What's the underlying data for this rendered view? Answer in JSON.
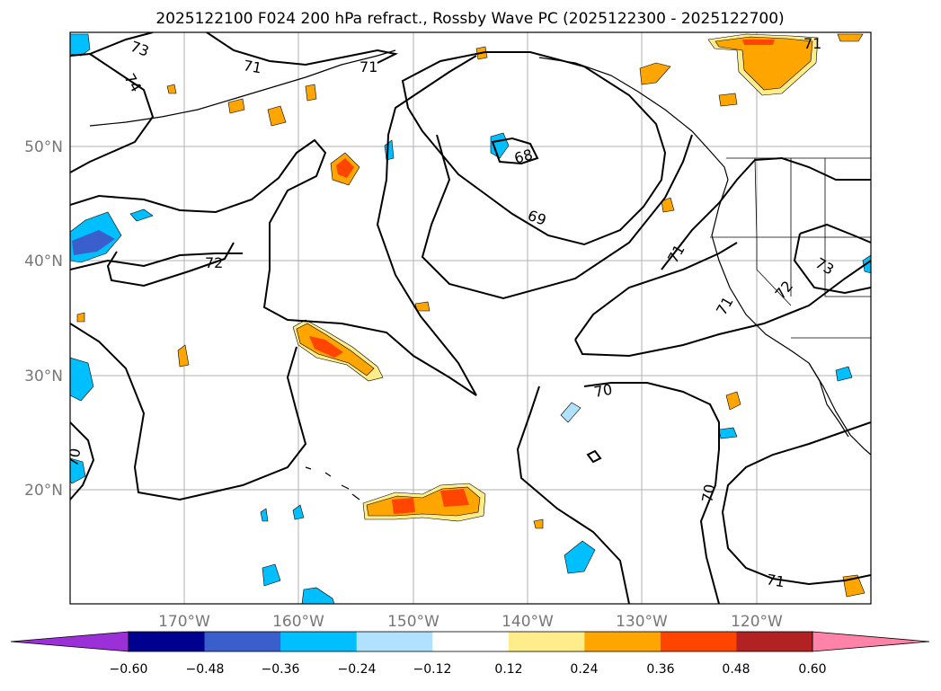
{
  "title": "2025122100 F024 200 hPa refract., Rossby Wave PC (2025122300 - 2025122700)",
  "map": {
    "lat_labels": [
      "50°N",
      "40°N",
      "30°N",
      "20°N"
    ],
    "lon_labels": [
      "170°W",
      "160°W",
      "150°W",
      "140°W",
      "130°W",
      "120°W"
    ],
    "contour_labels": [
      "73",
      "74",
      "71",
      "71",
      "71",
      "68",
      "69",
      "72",
      "71",
      "73",
      "72",
      "71",
      "70",
      "70",
      "70",
      "71"
    ]
  },
  "colorbar": {
    "ticks": [
      "−0.60",
      "−0.48",
      "−0.36",
      "−0.24",
      "−0.12",
      "0.12",
      "0.24",
      "0.36",
      "0.48",
      "0.60"
    ],
    "colors": {
      "under": "#9b30d9",
      "bins": [
        "#000090",
        "#3a5fcd",
        "#00bfff",
        "#b0e2ff",
        "#ffffff",
        "#ffec8b",
        "#ffa500",
        "#ff4500",
        "#b22222"
      ],
      "over": "#ff83a8"
    }
  },
  "fill_colors": {
    "neg_weak": "#b0e2ff",
    "neg_mid": "#00bfff",
    "neg_strong": "#3a5fcd",
    "pos_weak": "#ffec8b",
    "pos_mid": "#ffa500",
    "pos_strong": "#ff4500"
  }
}
